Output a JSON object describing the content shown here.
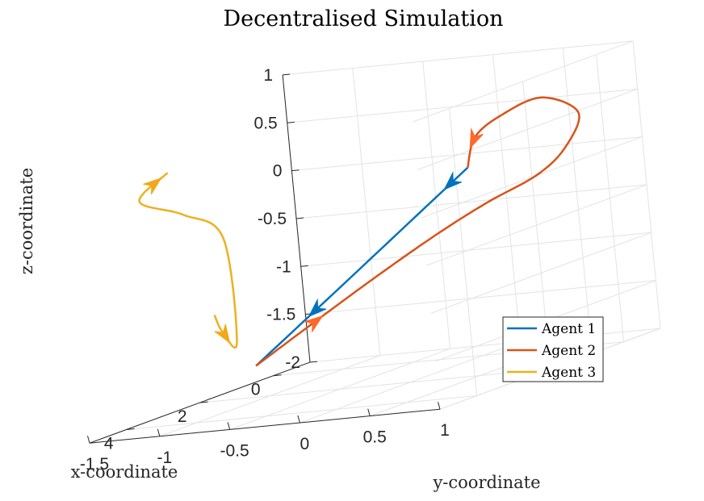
{
  "chart_data": {
    "type": "line",
    "title": "Decentralised Simulation",
    "xlabel": "x-coordinate",
    "ylabel": "y-coordinate",
    "zlabel": "z-coordinate",
    "xlim": [
      -1,
      5
    ],
    "ylim": [
      -1.5,
      1
    ],
    "zlim": [
      -2,
      1
    ],
    "x_ticks": [
      "0",
      "2",
      "4"
    ],
    "y_ticks": [
      "-1.5",
      "-1",
      "-0.5",
      "0",
      "0.5",
      "1"
    ],
    "z_ticks": [
      "1",
      "0.5",
      "0",
      "-0.5",
      "-1",
      "-1.5",
      "-2"
    ],
    "grid": true,
    "legend_position": "bottom-right",
    "series": [
      {
        "name": "Agent 1",
        "color": "#0072BD",
        "points": [
          [
            0.69,
            0.2,
            0.03
          ],
          [
            2.0,
            -0.3,
            -0.8
          ],
          [
            3.22,
            -0.75,
            -1.55
          ]
        ],
        "arrows_at": [
          0.08,
          0.72
        ]
      },
      {
        "name": "Agent 2",
        "color": "#D95319",
        "arrow_color": "#FF6929",
        "points": [
          [
            3.22,
            -0.75,
            -1.55
          ],
          [
            2.7,
            -0.55,
            -1.3
          ],
          [
            2.0,
            -0.2,
            -0.9
          ],
          [
            1.5,
            0.15,
            -0.55
          ],
          [
            1.2,
            0.45,
            -0.3
          ],
          [
            0.8,
            0.72,
            -0.1
          ],
          [
            0.4,
            0.83,
            0.12
          ],
          [
            -0.2,
            0.78,
            0.4
          ],
          [
            -0.3,
            0.5,
            0.58
          ],
          [
            -0.1,
            0.25,
            0.45
          ],
          [
            0.35,
            0.18,
            0.3
          ],
          [
            0.69,
            0.2,
            0.03
          ]
        ],
        "arrows_at": [
          0.13,
          0.95
        ]
      },
      {
        "name": "Agent 3",
        "color": "#EDB120",
        "arrow_color": "#F2A81A",
        "points": [
          [
            1.1,
            -1.58,
            -1.2
          ],
          [
            1.6,
            -1.4,
            -1.33
          ],
          [
            2.1,
            -1.17,
            -1.4
          ],
          [
            2.2,
            -1.17,
            -0.3
          ],
          [
            2.4,
            -1.38,
            0.0
          ],
          [
            2.6,
            -1.63,
            0.2
          ],
          [
            1.9,
            -1.6,
            0.4
          ]
        ],
        "arrows_at": [
          0.08,
          0.94
        ]
      }
    ]
  }
}
